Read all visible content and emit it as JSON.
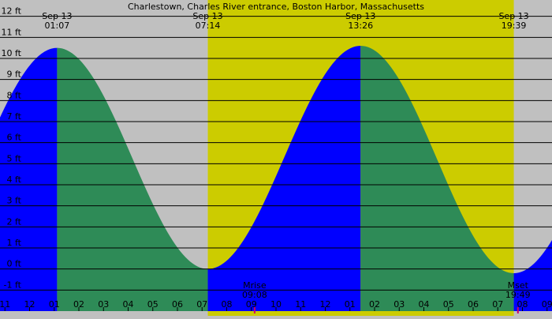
{
  "chart_data": {
    "type": "area",
    "title": "Charlestown, Charles River entrance, Boston Harbor, Massachusetts",
    "xlabel": "",
    "ylabel": "",
    "ylim": [
      -2,
      12.4
    ],
    "xlim": [
      -1.2,
      21.2
    ],
    "grid": true,
    "y_ticks": [
      {
        "value": -1,
        "label": "-1 ft"
      },
      {
        "value": 0,
        "label": "0 ft"
      },
      {
        "value": 1,
        "label": "1 ft"
      },
      {
        "value": 2,
        "label": "2 ft"
      },
      {
        "value": 3,
        "label": "3 ft"
      },
      {
        "value": 4,
        "label": "4 ft"
      },
      {
        "value": 5,
        "label": "5 ft"
      },
      {
        "value": 6,
        "label": "6 ft"
      },
      {
        "value": 7,
        "label": "7 ft"
      },
      {
        "value": 8,
        "label": "8 ft"
      },
      {
        "value": 9,
        "label": "9 ft"
      },
      {
        "value": 10,
        "label": "10 ft"
      },
      {
        "value": 11,
        "label": "11 ft"
      },
      {
        "value": 12,
        "label": "12 ft"
      }
    ],
    "x_ticks": [
      {
        "value": -1,
        "label": "11"
      },
      {
        "value": 0,
        "label": "12"
      },
      {
        "value": 1,
        "label": "01"
      },
      {
        "value": 2,
        "label": "02"
      },
      {
        "value": 3,
        "label": "03"
      },
      {
        "value": 4,
        "label": "04"
      },
      {
        "value": 5,
        "label": "05"
      },
      {
        "value": 6,
        "label": "06"
      },
      {
        "value": 7,
        "label": "07"
      },
      {
        "value": 8,
        "label": "08"
      },
      {
        "value": 9,
        "label": "09"
      },
      {
        "value": 10,
        "label": "10"
      },
      {
        "value": 11,
        "label": "11"
      },
      {
        "value": 12,
        "label": "12"
      },
      {
        "value": 13,
        "label": "01"
      },
      {
        "value": 14,
        "label": "02"
      },
      {
        "value": 15,
        "label": "03"
      },
      {
        "value": 16,
        "label": "04"
      },
      {
        "value": 17,
        "label": "05"
      },
      {
        "value": 18,
        "label": "06"
      },
      {
        "value": 19,
        "label": "07"
      },
      {
        "value": 20,
        "label": "08"
      },
      {
        "value": 21,
        "label": "09"
      }
    ],
    "daylight": [
      7.233,
      19.65
    ],
    "extremes": [
      {
        "time": 1.117,
        "height": 10.5,
        "date": "Sep 13",
        "clock": "01:07"
      },
      {
        "time": 7.233,
        "height": 0.0,
        "date": "Sep 13",
        "clock": "07:14"
      },
      {
        "time": 13.433,
        "height": 10.6,
        "date": "Sep 13",
        "clock": "13:26"
      },
      {
        "time": 19.65,
        "height": -0.2,
        "date": "Sep 13",
        "clock": "19:39"
      }
    ],
    "moon_events": [
      {
        "time": 9.133,
        "name": "Mrise",
        "clock": "09:08"
      },
      {
        "time": 19.817,
        "name": "Mset",
        "clock": "19:49"
      }
    ],
    "colors": {
      "background": "#c0c0c0",
      "daylight": "#cccc00",
      "rising": "#0000ff",
      "falling": "#2e8b57",
      "moon_tick": "#cc0066"
    }
  }
}
